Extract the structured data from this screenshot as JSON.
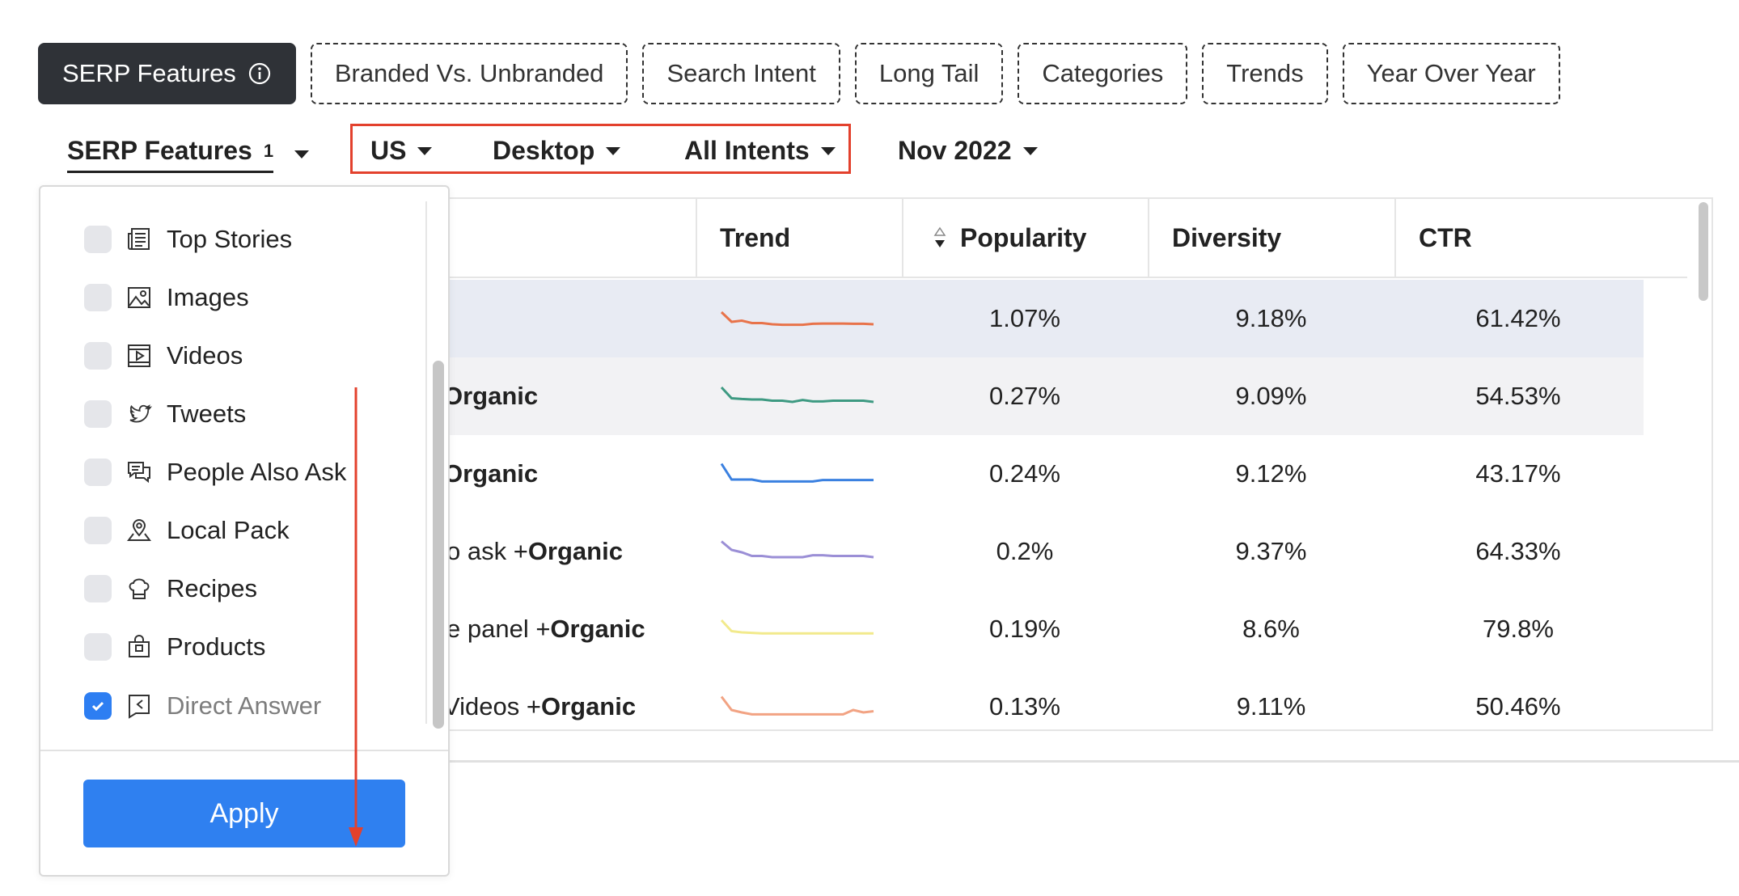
{
  "tabs": [
    {
      "label": "SERP Features",
      "active": true
    },
    {
      "label": "Branded Vs. Unbranded"
    },
    {
      "label": "Search Intent"
    },
    {
      "label": "Long Tail"
    },
    {
      "label": "Categories"
    },
    {
      "label": "Trends"
    },
    {
      "label": "Year Over Year"
    }
  ],
  "filters": {
    "serp_features": {
      "label": "SERP Features",
      "count": "1"
    },
    "country": "US",
    "device": "Desktop",
    "intent": "All Intents",
    "date": "Nov 2022"
  },
  "table": {
    "columns": [
      "Trend",
      "Popularity",
      "Diversity",
      "CTR"
    ],
    "rows": [
      {
        "name_prefix": "",
        "name_bold": "",
        "popularity": "1.07%",
        "diversity": "9.18%",
        "ctr": "61.42%",
        "trend_color": "#e8734a",
        "trend": [
          0.8,
          0.4,
          0.45,
          0.35,
          0.35,
          0.3,
          0.28,
          0.28,
          0.28,
          0.32,
          0.33,
          0.33,
          0.33,
          0.32,
          0.32,
          0.3
        ]
      },
      {
        "name_prefix": "",
        "name_bold": "Organic",
        "popularity": "0.27%",
        "diversity": "9.09%",
        "ctr": "54.53%",
        "trend_color": "#3e9a82",
        "trend": [
          0.9,
          0.45,
          0.42,
          0.4,
          0.4,
          0.35,
          0.35,
          0.3,
          0.38,
          0.32,
          0.32,
          0.35,
          0.35,
          0.35,
          0.35,
          0.3
        ]
      },
      {
        "name_prefix": "",
        "name_bold": "Organic",
        "popularity": "0.24%",
        "diversity": "9.12%",
        "ctr": "43.17%",
        "trend_color": "#3a80e0",
        "trend": [
          0.95,
          0.3,
          0.3,
          0.3,
          0.22,
          0.22,
          0.22,
          0.22,
          0.22,
          0.22,
          0.28,
          0.28,
          0.28,
          0.28,
          0.28,
          0.28
        ]
      },
      {
        "name_prefix": "o ask + ",
        "name_bold": "Organic",
        "popularity": "0.2%",
        "diversity": "9.37%",
        "ctr": "64.33%",
        "trend_color": "#9b8fd6",
        "trend": [
          0.95,
          0.6,
          0.5,
          0.35,
          0.35,
          0.3,
          0.3,
          0.3,
          0.3,
          0.38,
          0.38,
          0.35,
          0.35,
          0.35,
          0.35,
          0.3
        ]
      },
      {
        "name_prefix": "e panel + ",
        "name_bold": "Organic",
        "popularity": "0.19%",
        "diversity": "8.6%",
        "ctr": "79.8%",
        "trend_color": "#f2ea8c",
        "trend": [
          0.9,
          0.45,
          0.4,
          0.38,
          0.36,
          0.36,
          0.36,
          0.36,
          0.36,
          0.36,
          0.36,
          0.36,
          0.36,
          0.36,
          0.36,
          0.36
        ]
      },
      {
        "name_prefix": "Videos + ",
        "name_bold": "Organic",
        "popularity": "0.13%",
        "diversity": "9.11%",
        "ctr": "50.46%",
        "trend_color": "#f2a383",
        "trend": [
          0.95,
          0.4,
          0.3,
          0.22,
          0.22,
          0.22,
          0.22,
          0.22,
          0.22,
          0.22,
          0.22,
          0.22,
          0.22,
          0.4,
          0.3,
          0.35
        ]
      }
    ]
  },
  "dropdown": {
    "items": [
      {
        "label": "Top Stories",
        "checked": false,
        "icon": "newspaper-icon"
      },
      {
        "label": "Images",
        "checked": false,
        "icon": "image-icon"
      },
      {
        "label": "Videos",
        "checked": false,
        "icon": "video-icon"
      },
      {
        "label": "Tweets",
        "checked": false,
        "icon": "twitter-icon"
      },
      {
        "label": "People Also Ask",
        "checked": false,
        "icon": "chat-icon"
      },
      {
        "label": "Local Pack",
        "checked": false,
        "icon": "map-pin-icon"
      },
      {
        "label": "Recipes",
        "checked": false,
        "icon": "chef-hat-icon"
      },
      {
        "label": "Products",
        "checked": false,
        "icon": "shopping-bag-icon"
      },
      {
        "label": "Direct Answer",
        "checked": true,
        "icon": "answer-icon"
      }
    ],
    "apply_label": "Apply"
  }
}
